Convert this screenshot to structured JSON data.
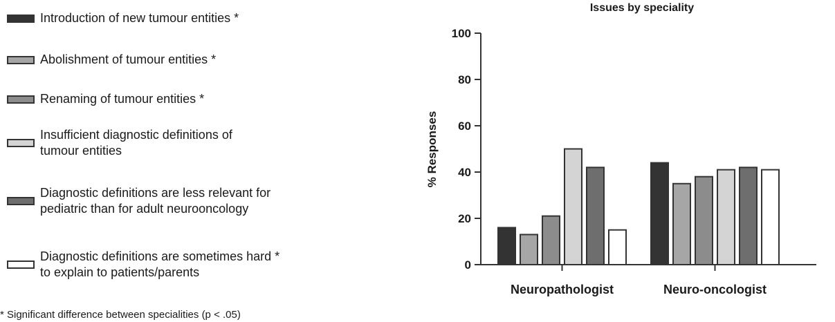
{
  "chart_data": {
    "type": "bar",
    "title": "Issues by speciality",
    "xlabel": "",
    "ylabel": "% Responses",
    "ylim": [
      0,
      100
    ],
    "yticks": [
      0,
      20,
      40,
      60,
      80,
      100
    ],
    "grid": false,
    "legend_position": "left",
    "categories": [
      "Neuropathologist",
      "Neuro-oncologist"
    ],
    "series": [
      {
        "name": "Introduction of new tumour entities *",
        "color": "#333333",
        "values": [
          16,
          44
        ]
      },
      {
        "name": "Abolishment of tumour entities  *",
        "color": "#a6a6a6",
        "values": [
          13,
          35
        ]
      },
      {
        "name": "Renaming of tumour entities *",
        "color": "#8c8c8c",
        "values": [
          21,
          38
        ]
      },
      {
        "name": "Insufficient diagnostic definitions of\ntumour entities",
        "color": "#d4d4d4",
        "values": [
          50,
          41
        ]
      },
      {
        "name": "Diagnostic definitions are less relevant for\npediatric than for adult neurooncology",
        "color": "#6e6e6e",
        "values": [
          42,
          42
        ]
      },
      {
        "name": "Diagnostic definitions are sometimes hard *\nto explain to patients/parents",
        "color": "#ffffff",
        "values": [
          15,
          41
        ]
      }
    ]
  },
  "footnote": "* Significant difference between specialities (p < .05)"
}
